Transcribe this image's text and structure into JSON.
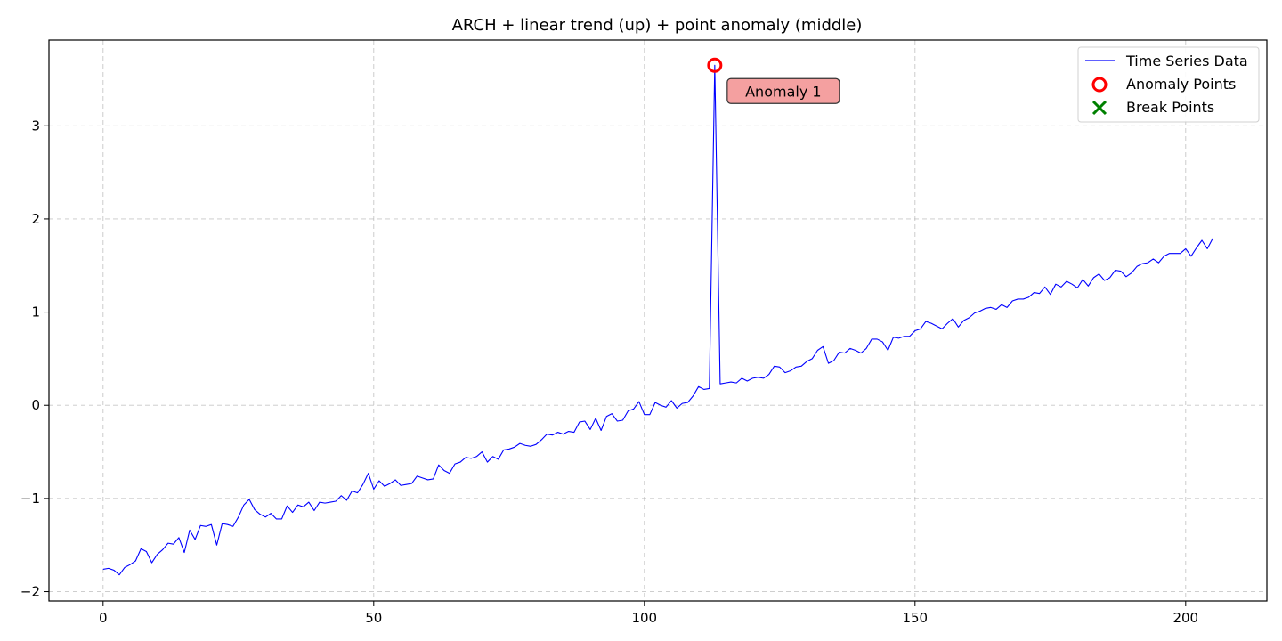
{
  "chart_data": {
    "type": "line",
    "title": "ARCH + linear trend (up) + point anomaly (middle)",
    "xlabel": "",
    "ylabel": "",
    "xlim": [
      -10,
      215
    ],
    "ylim": [
      -2.1,
      3.92
    ],
    "xticks": [
      0,
      50,
      100,
      150,
      200
    ],
    "yticks": [
      -2,
      -1,
      0,
      1,
      2,
      3
    ],
    "grid": true,
    "legend_position": "top-right",
    "legend": [
      "Time Series Data",
      "Anomaly Points",
      "Break Points"
    ],
    "colors": {
      "line": "#0000ff",
      "anomaly": "#ff0000",
      "break": "#008000",
      "annotation_fill": "#f4a0a0",
      "annotation_edge": "#333333"
    },
    "series": [
      {
        "name": "Time Series Data",
        "x": [
          0,
          1,
          2,
          3,
          4,
          5,
          6,
          7,
          8,
          9,
          10,
          11,
          12,
          13,
          14,
          15,
          16,
          17,
          18,
          19,
          20,
          21,
          22,
          23,
          24,
          25,
          26,
          27,
          28,
          29,
          30,
          31,
          32,
          33,
          34,
          35,
          36,
          37,
          38,
          39,
          40,
          41,
          42,
          43,
          44,
          45,
          46,
          47,
          48,
          49,
          50,
          51,
          52,
          53,
          54,
          55,
          56,
          57,
          58,
          59,
          60,
          61,
          62,
          63,
          64,
          65,
          66,
          67,
          68,
          69,
          70,
          71,
          72,
          73,
          74,
          75,
          76,
          77,
          78,
          79,
          80,
          81,
          82,
          83,
          84,
          85,
          86,
          87,
          88,
          89,
          90,
          91,
          92,
          93,
          94,
          95,
          96,
          97,
          98,
          99,
          100,
          101,
          102,
          103,
          104,
          105,
          106,
          107,
          108,
          109,
          110,
          111,
          112,
          113,
          114,
          115,
          116,
          117,
          118,
          119,
          120,
          121,
          122,
          123,
          124,
          125,
          126,
          127,
          128,
          129,
          130,
          131,
          132,
          133,
          134,
          135,
          136,
          137,
          138,
          139,
          140,
          141,
          142,
          143,
          144,
          145,
          146,
          147,
          148,
          149,
          150,
          151,
          152,
          153,
          154,
          155,
          156,
          157,
          158,
          159,
          160,
          161,
          162,
          163,
          164,
          165,
          166,
          167,
          168,
          169,
          170,
          171,
          172,
          173,
          174,
          175,
          176,
          177,
          178,
          179,
          180,
          181,
          182,
          183,
          184,
          185,
          186,
          187,
          188,
          189,
          190,
          191,
          192,
          193,
          194,
          195,
          196,
          197,
          198,
          199,
          200,
          201,
          202,
          203,
          204,
          205
        ],
        "y": [
          -1.76,
          -1.75,
          -1.77,
          -1.82,
          -1.74,
          -1.71,
          -1.67,
          -1.54,
          -1.57,
          -1.69,
          -1.6,
          -1.55,
          -1.48,
          -1.49,
          -1.42,
          -1.58,
          -1.34,
          -1.44,
          -1.29,
          -1.3,
          -1.28,
          -1.5,
          -1.27,
          -1.28,
          -1.3,
          -1.2,
          -1.07,
          -1.01,
          -1.12,
          -1.17,
          -1.2,
          -1.16,
          -1.22,
          -1.22,
          -1.08,
          -1.15,
          -1.07,
          -1.09,
          -1.04,
          -1.13,
          -1.04,
          -1.05,
          -1.04,
          -1.03,
          -0.97,
          -1.02,
          -0.92,
          -0.94,
          -0.85,
          -0.73,
          -0.9,
          -0.81,
          -0.87,
          -0.84,
          -0.8,
          -0.86,
          -0.85,
          -0.84,
          -0.76,
          -0.78,
          -0.8,
          -0.79,
          -0.64,
          -0.7,
          -0.73,
          -0.63,
          -0.61,
          -0.56,
          -0.57,
          -0.55,
          -0.5,
          -0.61,
          -0.55,
          -0.58,
          -0.48,
          -0.47,
          -0.45,
          -0.41,
          -0.43,
          -0.44,
          -0.42,
          -0.37,
          -0.31,
          -0.32,
          -0.29,
          -0.31,
          -0.28,
          -0.29,
          -0.18,
          -0.17,
          -0.26,
          -0.14,
          -0.27,
          -0.12,
          -0.09,
          -0.17,
          -0.16,
          -0.06,
          -0.04,
          0.04,
          -0.1,
          -0.1,
          0.03,
          0.0,
          -0.02,
          0.05,
          -0.03,
          0.02,
          0.03,
          0.1,
          0.2,
          0.17,
          0.18,
          3.65,
          0.23,
          0.24,
          0.25,
          0.24,
          0.29,
          0.26,
          0.29,
          0.3,
          0.29,
          0.33,
          0.42,
          0.41,
          0.35,
          0.37,
          0.41,
          0.42,
          0.47,
          0.5,
          0.59,
          0.63,
          0.45,
          0.48,
          0.57,
          0.56,
          0.61,
          0.59,
          0.56,
          0.61,
          0.71,
          0.71,
          0.68,
          0.59,
          0.73,
          0.72,
          0.74,
          0.74,
          0.8,
          0.82,
          0.9,
          0.88,
          0.85,
          0.82,
          0.88,
          0.93,
          0.84,
          0.91,
          0.94,
          0.99,
          1.01,
          1.04,
          1.05,
          1.03,
          1.08,
          1.05,
          1.12,
          1.14,
          1.14,
          1.16,
          1.21,
          1.2,
          1.27,
          1.19,
          1.3,
          1.27,
          1.33,
          1.3,
          1.26,
          1.35,
          1.28,
          1.37,
          1.41,
          1.34,
          1.37,
          1.45,
          1.44,
          1.38,
          1.42,
          1.49,
          1.52,
          1.53,
          1.57,
          1.53,
          1.6,
          1.63,
          1.63,
          1.63,
          1.68,
          1.6,
          1.69,
          1.77,
          1.68,
          1.79
        ]
      }
    ],
    "anomaly_points": [
      {
        "x": 113,
        "y": 3.65,
        "label": "Anomaly 1"
      }
    ],
    "break_points": []
  }
}
